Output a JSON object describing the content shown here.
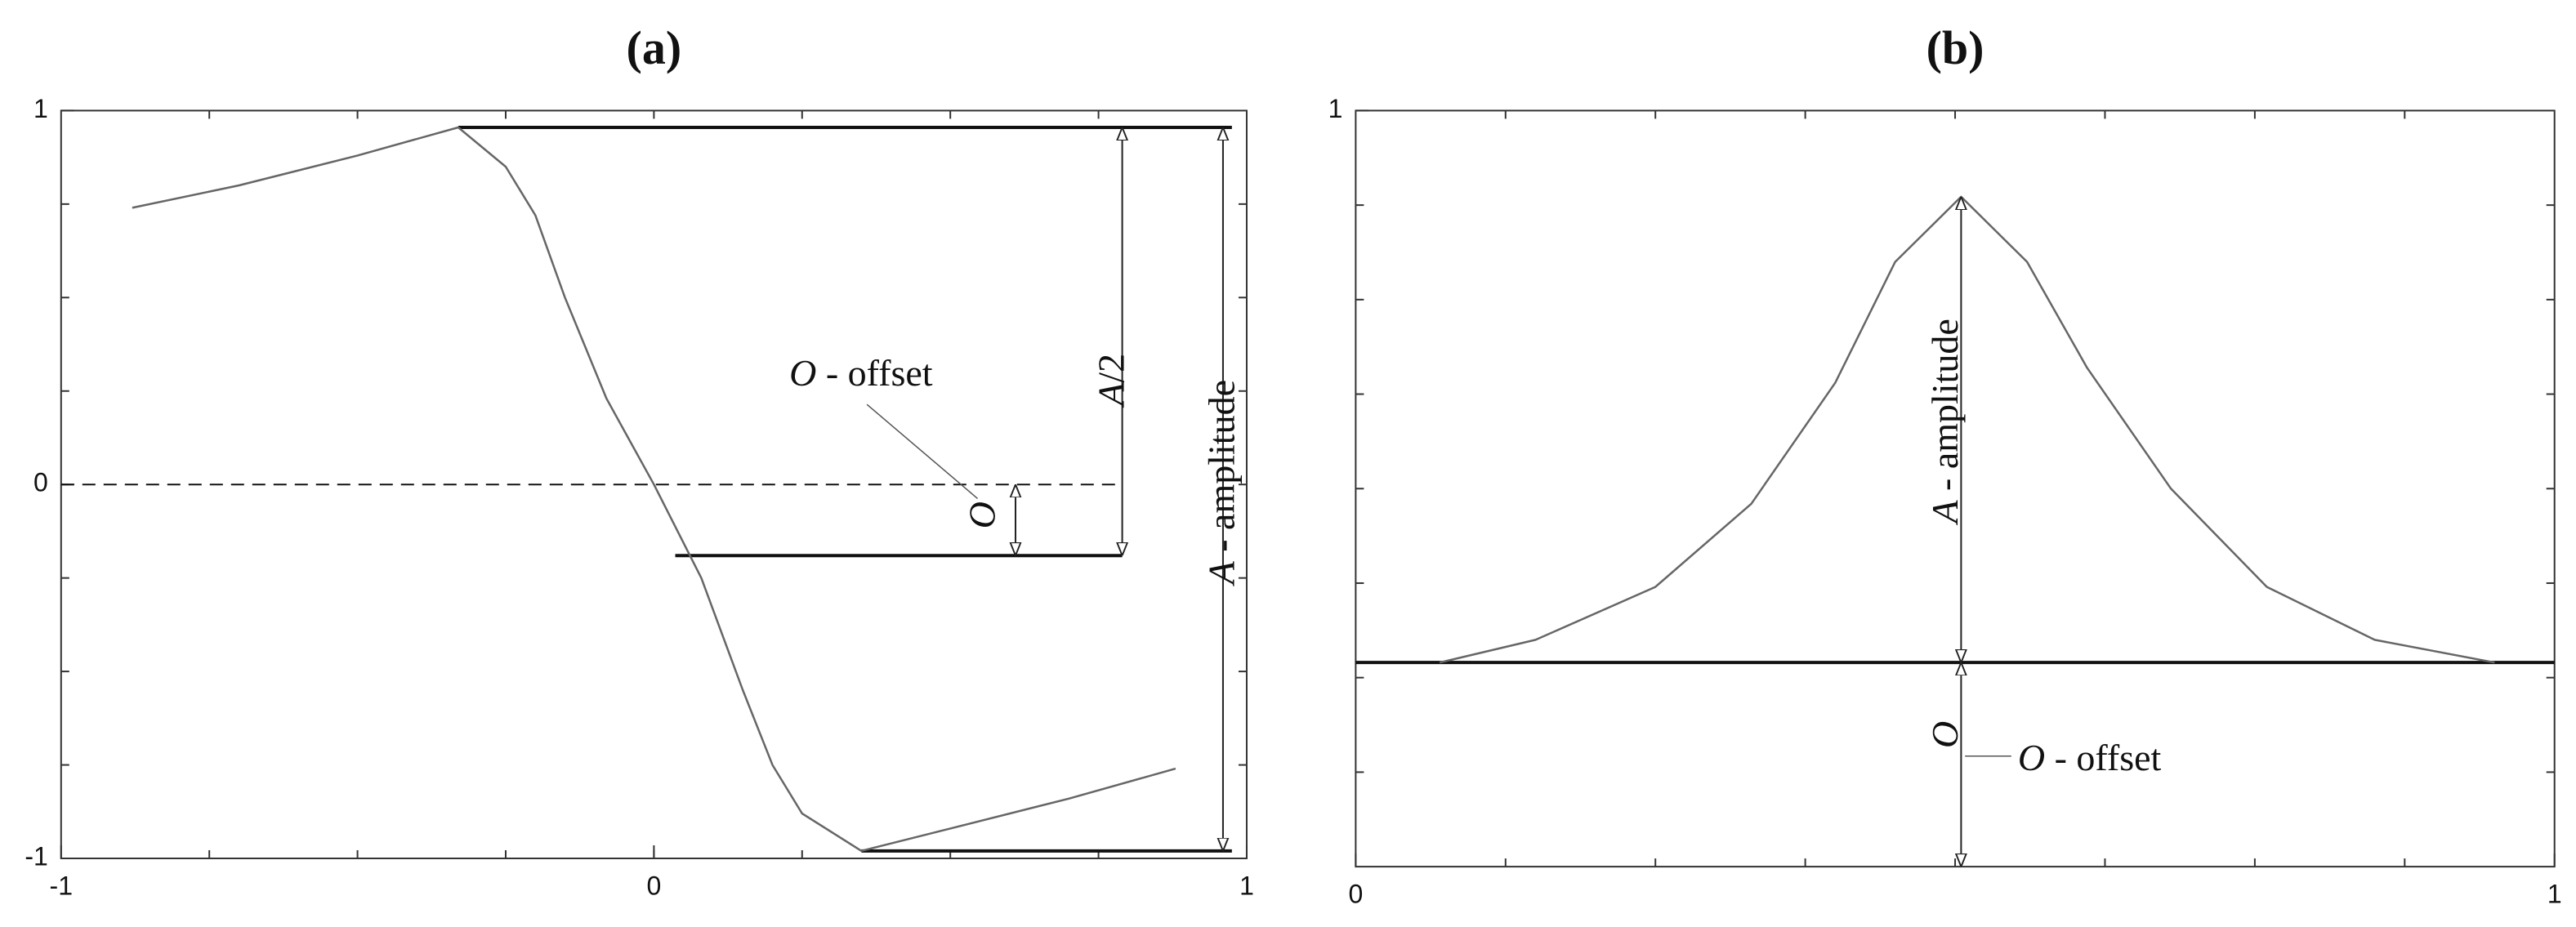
{
  "chart_data": [
    {
      "type": "line",
      "title": "(a)",
      "xlim": [
        -1,
        1
      ],
      "ylim": [
        -1,
        1
      ],
      "xticks": [
        -1,
        0,
        1
      ],
      "yticks": [
        -1,
        0,
        1
      ],
      "series": [
        {
          "color": "#666666",
          "x": [
            -0.88,
            -0.7,
            -0.5,
            -0.33,
            -0.25,
            -0.2,
            -0.15,
            -0.08,
            0,
            0.08,
            0.15,
            0.2,
            0.25,
            0.35,
            0.5,
            0.7,
            0.88
          ],
          "values": [
            0.74,
            0.8,
            0.88,
            0.955,
            0.85,
            0.72,
            0.5,
            0.23,
            0,
            -0.25,
            -0.55,
            -0.75,
            -0.88,
            -0.98,
            -0.92,
            -0.84,
            -0.76
          ]
        }
      ],
      "reference_lines": [
        {
          "y": 0.955,
          "x": [
            -0.33,
            0.975
          ],
          "style": "solid"
        },
        {
          "y": -0.19,
          "x": [
            0.036,
            0.79
          ],
          "style": "solid"
        },
        {
          "y": -0.98,
          "x": [
            0.35,
            0.975
          ],
          "style": "solid"
        },
        {
          "y": 0,
          "x": [
            -1,
            0.79
          ],
          "style": "dashed"
        }
      ],
      "arrows": [
        {
          "x": 0.79,
          "y": [
            0.955,
            -0.19
          ]
        },
        {
          "x": 0.96,
          "y": [
            0.955,
            -0.98
          ]
        },
        {
          "x": 0.61,
          "y": [
            0,
            -0.19
          ]
        }
      ],
      "annotations": [
        {
          "symbol": "O",
          "text": " - offset"
        },
        {
          "symbol": "A",
          "text": "/2"
        },
        {
          "symbol": "A",
          "text": " - amplitude"
        },
        {
          "symbol": "O"
        }
      ]
    },
    {
      "type": "line",
      "title": "(b)",
      "xlim": [
        0,
        1
      ],
      "ylim": [
        0,
        1
      ],
      "xticks": [
        0,
        1
      ],
      "yticks": [
        1
      ],
      "series": [
        {
          "color": "#666666",
          "x": [
            0.07,
            0.15,
            0.25,
            0.33,
            0.4,
            0.45,
            0.505,
            0.56,
            0.61,
            0.68,
            0.76,
            0.85,
            0.95
          ],
          "values": [
            0.27,
            0.3,
            0.37,
            0.48,
            0.64,
            0.8,
            0.886,
            0.8,
            0.66,
            0.5,
            0.37,
            0.3,
            0.27
          ]
        }
      ],
      "reference_lines": [
        {
          "y": 0.27,
          "x": [
            0,
            1
          ],
          "style": "solid"
        }
      ],
      "arrows": [
        {
          "x": 0.505,
          "y": [
            0.886,
            0.27
          ]
        },
        {
          "x": 0.505,
          "y": [
            0.27,
            0
          ]
        }
      ],
      "annotations": [
        {
          "symbol": "A",
          "text": " - amplitude"
        },
        {
          "symbol": "O"
        },
        {
          "symbol": "O",
          "text": " - offset"
        }
      ]
    }
  ]
}
